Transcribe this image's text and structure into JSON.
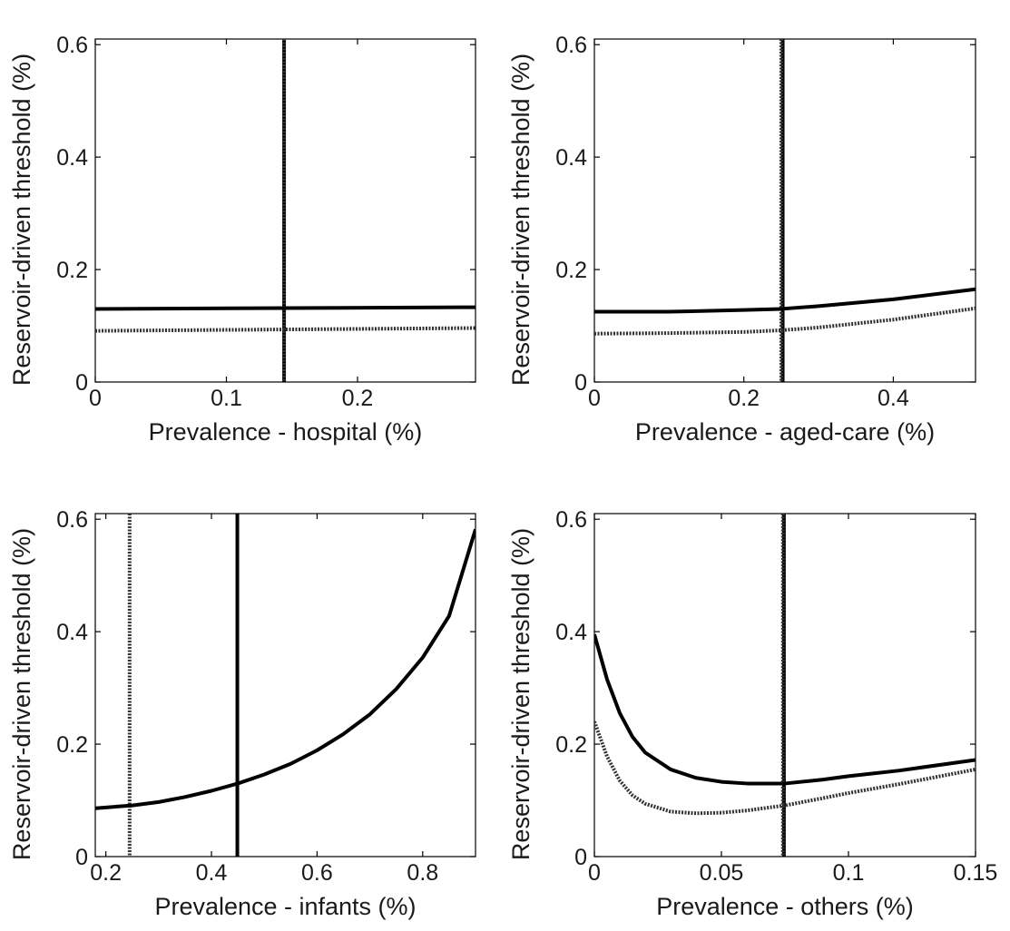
{
  "chart_data": [
    {
      "type": "line",
      "xlabel": "Prevalence - hospital (%)",
      "ylabel": "Reservoir-driven threshold (%)",
      "xlim": [
        0,
        0.29
      ],
      "ylim": [
        0,
        0.61
      ],
      "xticks": [
        0,
        0.1,
        0.2
      ],
      "xtick_labels": [
        "0",
        "0.1",
        "0.2"
      ],
      "yticks": [
        0,
        0.2,
        0.4,
        0.6
      ],
      "ytick_labels": [
        "0",
        "0.2",
        "0.4",
        "0.6"
      ],
      "grid": false,
      "series": [
        {
          "style": "solid",
          "x": [
            0,
            0.29
          ],
          "y": [
            0.13,
            0.133
          ]
        },
        {
          "style": "dotted",
          "x": [
            0,
            0.29
          ],
          "y": [
            0.091,
            0.096
          ]
        }
      ],
      "vlines": [
        {
          "style": "solid",
          "x": 0.144
        },
        {
          "style": "dotted",
          "x": 0.144
        }
      ]
    },
    {
      "type": "line",
      "xlabel": "Prevalence - aged-care (%)",
      "ylabel": "Reservoir-driven threshold (%)",
      "xlim": [
        0,
        0.51
      ],
      "ylim": [
        0,
        0.61
      ],
      "xticks": [
        0,
        0.2,
        0.4
      ],
      "xtick_labels": [
        "0",
        "0.2",
        "0.4"
      ],
      "yticks": [
        0,
        0.2,
        0.4,
        0.6
      ],
      "ytick_labels": [
        "0",
        "0.2",
        "0.4",
        "0.6"
      ],
      "grid": false,
      "series": [
        {
          "style": "solid",
          "x": [
            0,
            0.1,
            0.2,
            0.25,
            0.3,
            0.4,
            0.51
          ],
          "y": [
            0.125,
            0.125,
            0.128,
            0.13,
            0.135,
            0.147,
            0.165
          ]
        },
        {
          "style": "dotted",
          "x": [
            0,
            0.1,
            0.2,
            0.25,
            0.3,
            0.4,
            0.51
          ],
          "y": [
            0.086,
            0.087,
            0.089,
            0.092,
            0.097,
            0.111,
            0.131
          ]
        }
      ],
      "vlines": [
        {
          "style": "solid",
          "x": 0.252
        },
        {
          "style": "dotted",
          "x": 0.25
        }
      ]
    },
    {
      "type": "line",
      "xlabel": "Prevalence - infants (%)",
      "ylabel": "Reservoir-driven threshold (%)",
      "xlim": [
        0.18,
        0.9
      ],
      "ylim": [
        0,
        0.61
      ],
      "xticks": [
        0.2,
        0.4,
        0.6,
        0.8
      ],
      "xtick_labels": [
        "0.2",
        "0.4",
        "0.6",
        "0.8"
      ],
      "yticks": [
        0,
        0.2,
        0.4,
        0.6
      ],
      "ytick_labels": [
        "0",
        "0.2",
        "0.4",
        "0.6"
      ],
      "grid": false,
      "series": [
        {
          "style": "solid",
          "x": [
            0.18,
            0.25,
            0.3,
            0.35,
            0.4,
            0.45,
            0.5,
            0.55,
            0.6,
            0.65,
            0.7,
            0.75,
            0.8,
            0.85,
            0.9
          ],
          "y": [
            0.086,
            0.091,
            0.097,
            0.106,
            0.117,
            0.13,
            0.146,
            0.165,
            0.189,
            0.218,
            0.253,
            0.298,
            0.354,
            0.428,
            0.582
          ]
        }
      ],
      "vlines": [
        {
          "style": "dotted",
          "x": 0.245
        },
        {
          "style": "solid",
          "x": 0.449
        }
      ]
    },
    {
      "type": "line",
      "xlabel": "Prevalence - others (%)",
      "ylabel": "Reservoir-driven threshold (%)",
      "xlim": [
        0,
        0.15
      ],
      "ylim": [
        0,
        0.61
      ],
      "xticks": [
        0,
        0.05,
        0.1,
        0.15
      ],
      "xtick_labels": [
        "0",
        "0.05",
        "0.1",
        "0.15"
      ],
      "yticks": [
        0,
        0.2,
        0.4,
        0.6
      ],
      "ytick_labels": [
        "0",
        "0.2",
        "0.4",
        "0.6"
      ],
      "grid": false,
      "series": [
        {
          "style": "solid",
          "x": [
            0,
            0.005,
            0.01,
            0.015,
            0.02,
            0.03,
            0.04,
            0.05,
            0.06,
            0.075,
            0.09,
            0.1,
            0.12,
            0.15
          ],
          "y": [
            0.395,
            0.315,
            0.255,
            0.213,
            0.185,
            0.155,
            0.14,
            0.133,
            0.13,
            0.13,
            0.137,
            0.143,
            0.153,
            0.172
          ]
        },
        {
          "style": "dotted",
          "x": [
            0,
            0.005,
            0.01,
            0.015,
            0.02,
            0.03,
            0.04,
            0.05,
            0.06,
            0.075,
            0.09,
            0.1,
            0.12,
            0.15
          ],
          "y": [
            0.24,
            0.178,
            0.135,
            0.109,
            0.094,
            0.08,
            0.077,
            0.078,
            0.082,
            0.091,
            0.104,
            0.113,
            0.129,
            0.155
          ]
        }
      ],
      "vlines": [
        {
          "style": "solid",
          "x": 0.0746
        },
        {
          "style": "dotted",
          "x": 0.0742
        }
      ]
    }
  ]
}
